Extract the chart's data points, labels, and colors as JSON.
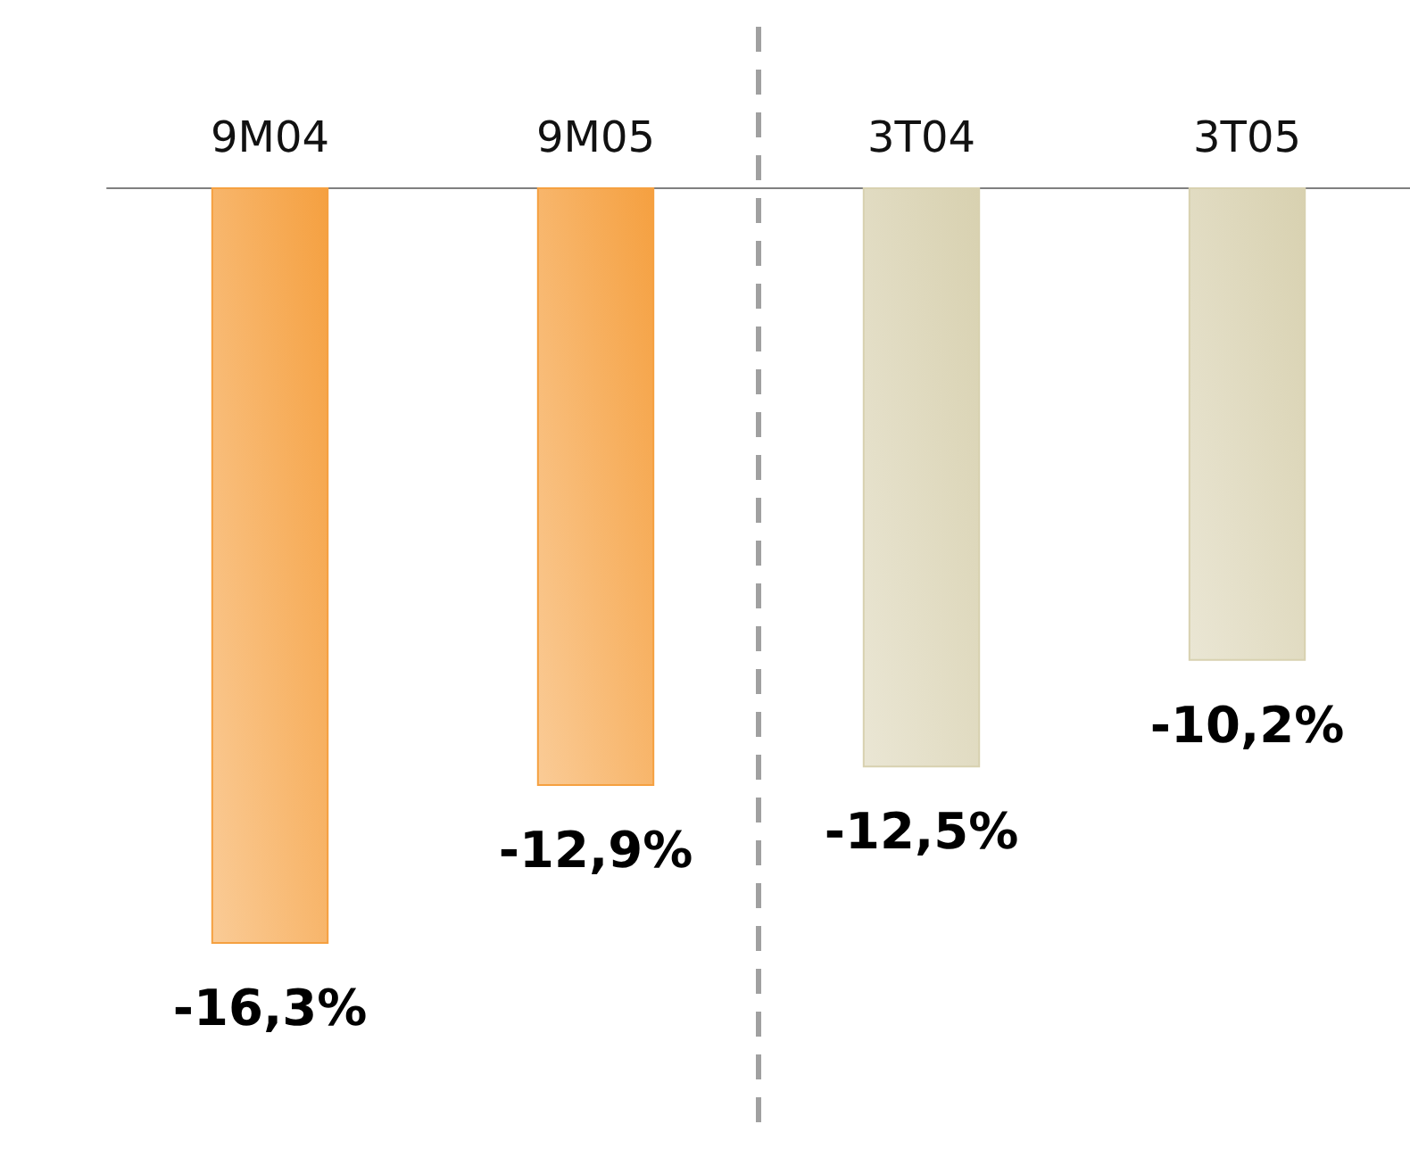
{
  "chart_data": {
    "type": "bar",
    "categories": [
      "9M04",
      "9M05",
      "3T04",
      "3T05"
    ],
    "values": [
      -16.3,
      -12.9,
      -12.5,
      -10.2
    ],
    "colors": [
      "#f5a040",
      "#f5a040",
      "#d8d1b0",
      "#d8d1b0"
    ],
    "value_labels": [
      "-16,3%",
      "-12,9%",
      "-12,5%",
      "-10,2%"
    ]
  }
}
